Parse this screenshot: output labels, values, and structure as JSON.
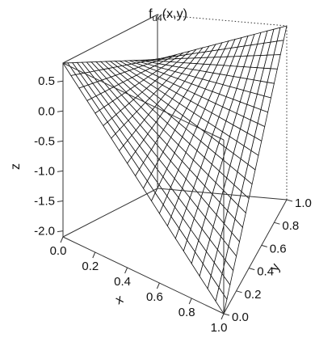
{
  "chart_data": {
    "type": "surface",
    "title": "f",
    "title_subscript": "u4",
    "title_args": "(x,y)",
    "xlabel": "x",
    "ylabel": "y",
    "zlabel": "z",
    "xlim": [
      0,
      1
    ],
    "ylim": [
      0,
      1
    ],
    "zlim": [
      -2.1,
      0.8
    ],
    "x_ticks": [
      "0.0",
      "0.2",
      "0.4",
      "0.6",
      "0.8",
      "1.0"
    ],
    "y_ticks": [
      "0.0",
      "0.2",
      "0.4",
      "0.6",
      "0.8",
      "1.0"
    ],
    "z_ticks": [
      "0.5",
      "0.0",
      "-0.5",
      "-1.0",
      "-1.5",
      "-2.0"
    ],
    "grid": "20x20 wireframe mesh",
    "box": true,
    "surface_values": [
      {
        "x": 0,
        "y": 0,
        "z": 0.8
      },
      {
        "x": 0,
        "y": 1,
        "z": 0.05
      },
      {
        "x": 1,
        "y": 0,
        "z": -2.1
      },
      {
        "x": 1,
        "y": 1,
        "z": 0.8
      },
      {
        "x": 0.5,
        "y": 0.5,
        "z": -0.25
      }
    ],
    "colors": {
      "mesh": "#111111",
      "box": "#333333",
      "background": "#ffffff"
    }
  }
}
